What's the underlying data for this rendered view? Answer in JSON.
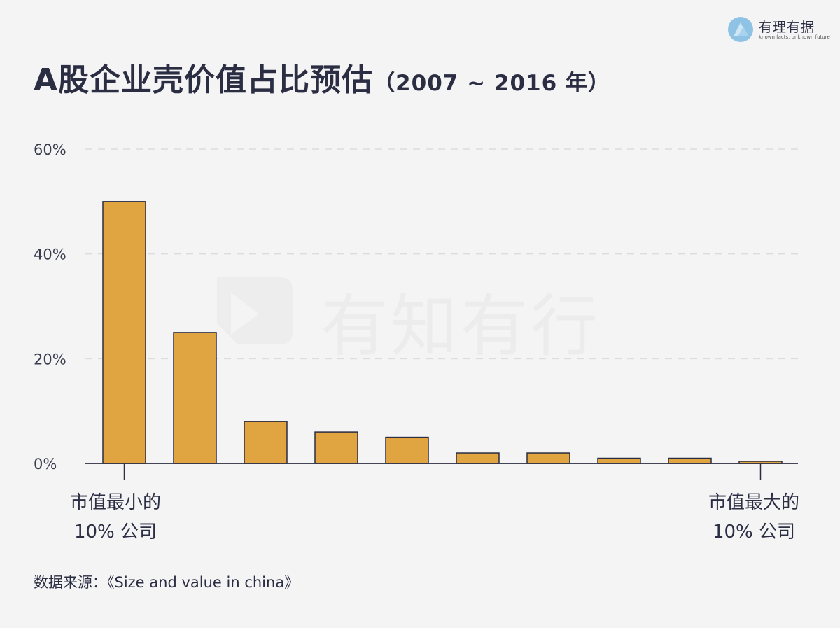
{
  "header": {
    "title": "A股企业壳价值占比预估",
    "subtitle": "（2007 ~ 2016 年）"
  },
  "logo": {
    "name": "有理有据",
    "tagline": "known facts, unknown future",
    "icon": "logo-mark-icon"
  },
  "watermark": {
    "text": "有知有行",
    "icon": "watermark-logo-icon"
  },
  "colors": {
    "bar_fill": "#e0a440",
    "bar_stroke": "#2b2d42",
    "grid": "#dcdcdf",
    "background": "#f4f4f5"
  },
  "chart_data": {
    "type": "bar",
    "categories": [
      "",
      "",
      "",
      "",
      "",
      "",
      "",
      "",
      "",
      ""
    ],
    "values": [
      50,
      25,
      8,
      6,
      5,
      2,
      2,
      1,
      1,
      0.4
    ],
    "title": "A股企业壳价值占比预估",
    "xlabel": "",
    "ylabel": "",
    "ylim": [
      0,
      60
    ],
    "yticks": [
      "0%",
      "20%",
      "40%",
      "60%"
    ],
    "grid": true,
    "legend": "none"
  },
  "x_annotations": {
    "left_line1": "市值最小的",
    "left_line2": "10% 公司",
    "right_line1": "市值最大的",
    "right_line2": "10% 公司"
  },
  "source": "数据来源：《Size and value in china》"
}
